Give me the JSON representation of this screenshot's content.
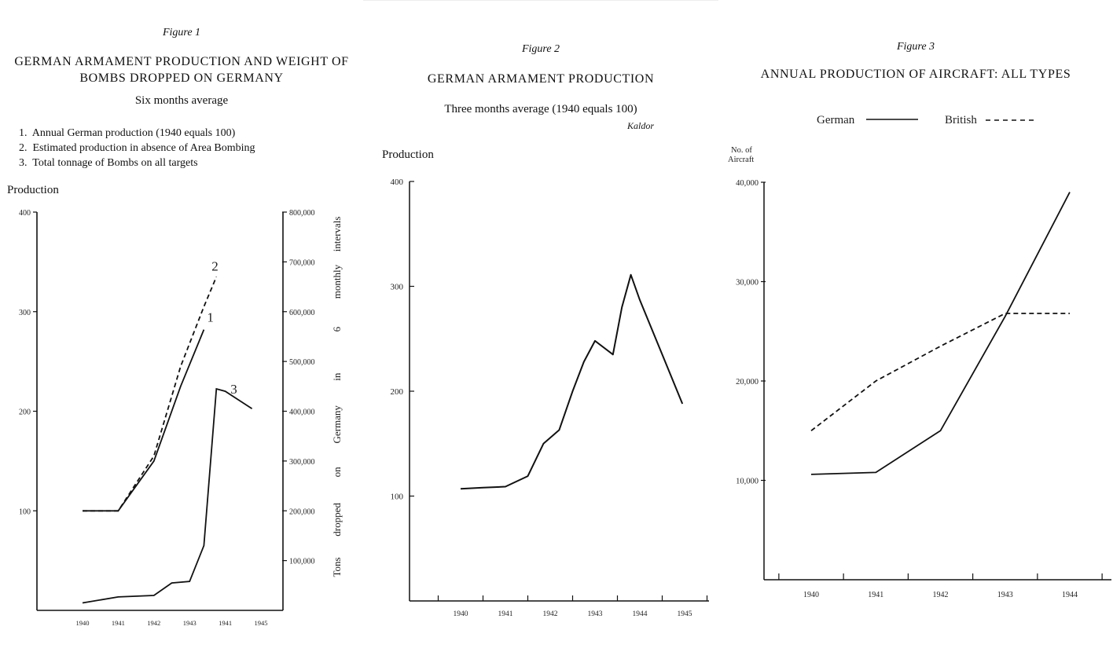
{
  "chart_data": [
    {
      "type": "line",
      "figure_label": "Figure 1",
      "title": "GERMAN ARMAMENT PRODUCTION AND WEIGHT OF BOMBS DROPPED ON GERMANY",
      "subtitle": "Six months average",
      "legend": [
        {
          "num": "1.",
          "text": "Annual German production (1940 equals 100)"
        },
        {
          "num": "2.",
          "text": "Estimated production in absence of Area Bombing"
        },
        {
          "num": "3.",
          "text": "Total tonnage of Bombs on all targets"
        }
      ],
      "ylabel": "Production",
      "y_right_label_words": [
        "Tons",
        "dropped",
        "on",
        "Germany",
        "in",
        "6",
        "monthly",
        "intervals"
      ],
      "x_ticks": [
        "1940",
        "1941",
        "1942",
        "1943",
        "1941",
        "1945"
      ],
      "x_range": [
        1940,
        1945.5
      ],
      "ylim": [
        0,
        400
      ],
      "y_ticks": [
        "100",
        "200",
        "300",
        "400"
      ],
      "y_tick_values": [
        100,
        200,
        300,
        400
      ],
      "y2lim": [
        0,
        800000
      ],
      "y2_ticks": [
        "100,000",
        "200,000",
        "300,000",
        "400,000",
        "500,000",
        "600,000",
        "700,000",
        "800,000"
      ],
      "y2_tick_values": [
        100000,
        200000,
        300000,
        400000,
        500000,
        600000,
        700000,
        800000
      ],
      "series": [
        {
          "name": "1",
          "axis": "left",
          "dash": false,
          "x": [
            1940.0,
            1941.0,
            1942.0,
            1942.75,
            1943.4
          ],
          "y": [
            100,
            100,
            150,
            225,
            282
          ]
        },
        {
          "name": "2",
          "axis": "left",
          "dash": true,
          "x": [
            1940.0,
            1941.0,
            1942.0,
            1942.75,
            1943.4,
            1943.75
          ],
          "y": [
            100,
            100,
            155,
            245,
            305,
            335
          ]
        },
        {
          "name": "3",
          "axis": "right",
          "dash": false,
          "x": [
            1940.0,
            1941.0,
            1942.0,
            1942.5,
            1943.0,
            1943.4,
            1943.75,
            1944.0,
            1944.75
          ],
          "y": [
            15000,
            27000,
            30000,
            55000,
            58000,
            130000,
            445000,
            440000,
            405000
          ]
        }
      ]
    },
    {
      "type": "line",
      "figure_label": "Figure 2",
      "title": "GERMAN ARMAMENT PRODUCTION",
      "subtitle": "Three months average (1940 equals 100)",
      "note": "Kaldor",
      "ylabel": "Production",
      "x_ticks": [
        "1940",
        "1941",
        "1942",
        "1943",
        "1944",
        "1945"
      ],
      "x_range": [
        1939.5,
        1946
      ],
      "ylim": [
        0,
        400
      ],
      "y_ticks": [
        "100",
        "200",
        "300",
        "400"
      ],
      "y_tick_values": [
        100,
        200,
        300,
        400
      ],
      "series": [
        {
          "name": "",
          "dash": false,
          "x": [
            1940.0,
            1940.5,
            1941.0,
            1941.5,
            1941.85,
            1942.2,
            1942.5,
            1942.75,
            1943.0,
            1943.4,
            1943.6,
            1943.8,
            1944.0,
            1944.5,
            1944.95
          ],
          "y": [
            107,
            108,
            109,
            119,
            150,
            163,
            200,
            228,
            248,
            235,
            280,
            311,
            287,
            235,
            188
          ]
        }
      ]
    },
    {
      "type": "line",
      "figure_label": "Figure 3",
      "title": "ANNUAL PRODUCTION OF AIRCRAFT: ALL TYPES",
      "legend_labels": [
        "German",
        "British"
      ],
      "ylabel_lines": [
        "No. of",
        "Aircraft"
      ],
      "x_ticks": [
        "1940",
        "1941",
        "1942",
        "1943",
        "1944"
      ],
      "x_range": [
        1939.5,
        1944.5
      ],
      "ylim": [
        0,
        40000
      ],
      "y_ticks": [
        "10,000",
        "20,000",
        "30,000",
        "40,000"
      ],
      "y_tick_values": [
        10000,
        20000,
        30000,
        40000
      ],
      "series": [
        {
          "name": "German",
          "dash": false,
          "x": [
            1940.0,
            1941.0,
            1942.0,
            1943.0,
            1944.0
          ],
          "y": [
            10600,
            10800,
            15000,
            26500,
            39000
          ]
        },
        {
          "name": "British",
          "dash": true,
          "x": [
            1940.0,
            1941.0,
            1942.0,
            1943.0,
            1944.0
          ],
          "y": [
            15000,
            20000,
            23500,
            26800,
            26800
          ]
        }
      ]
    }
  ]
}
